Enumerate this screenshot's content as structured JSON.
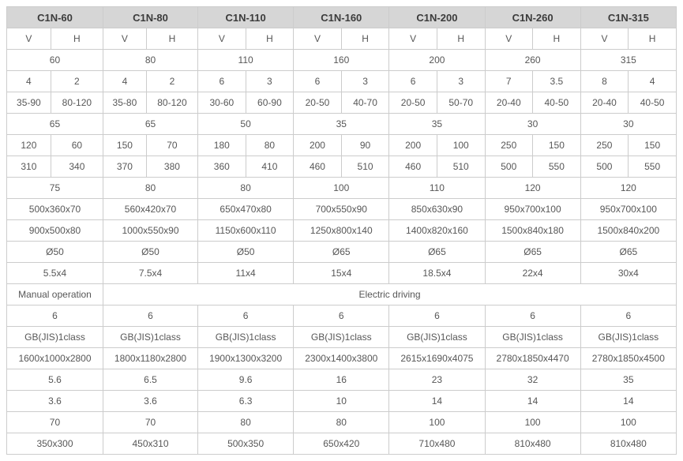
{
  "headers": [
    "C1N-60",
    "C1N-80",
    "C1N-110",
    "C1N-160",
    "C1N-200",
    "C1N-260",
    "C1N-315"
  ],
  "sub": {
    "v": "V",
    "h": "H"
  },
  "row_single_1": [
    "60",
    "80",
    "110",
    "160",
    "200",
    "260",
    "315"
  ],
  "row_vh_1": [
    [
      "4",
      "2"
    ],
    [
      "4",
      "2"
    ],
    [
      "6",
      "3"
    ],
    [
      "6",
      "3"
    ],
    [
      "6",
      "3"
    ],
    [
      "7",
      "3.5"
    ],
    [
      "8",
      "4"
    ]
  ],
  "row_vh_2": [
    [
      "35-90",
      "80-120"
    ],
    [
      "35-80",
      "80-120"
    ],
    [
      "30-60",
      "60-90"
    ],
    [
      "20-50",
      "40-70"
    ],
    [
      "20-50",
      "50-70"
    ],
    [
      "20-40",
      "40-50"
    ],
    [
      "20-40",
      "40-50"
    ]
  ],
  "row_single_2": [
    "65",
    "65",
    "50",
    "35",
    "35",
    "30",
    "30"
  ],
  "row_vh_3": [
    [
      "120",
      "60"
    ],
    [
      "150",
      "70"
    ],
    [
      "180",
      "80"
    ],
    [
      "200",
      "90"
    ],
    [
      "200",
      "100"
    ],
    [
      "250",
      "150"
    ],
    [
      "250",
      "150"
    ]
  ],
  "row_vh_4": [
    [
      "310",
      "340"
    ],
    [
      "370",
      "380"
    ],
    [
      "360",
      "410"
    ],
    [
      "460",
      "510"
    ],
    [
      "460",
      "510"
    ],
    [
      "500",
      "550"
    ],
    [
      "500",
      "550"
    ]
  ],
  "row_single_3": [
    "75",
    "80",
    "80",
    "100",
    "110",
    "120",
    "120"
  ],
  "row_single_4": [
    "500x360x70",
    "560x420x70",
    "650x470x80",
    "700x550x90",
    "850x630x90",
    "950x700x100",
    "950x700x100"
  ],
  "row_single_5": [
    "900x500x80",
    "1000x550x90",
    "1150x600x110",
    "1250x800x140",
    "1400x820x160",
    "1500x840x180",
    "1500x840x200"
  ],
  "row_single_6": [
    "Ø50",
    "Ø50",
    "Ø50",
    "Ø65",
    "Ø65",
    "Ø65",
    "Ø65"
  ],
  "row_single_7": [
    "5.5x4",
    "7.5x4",
    "11x4",
    "15x4",
    "18.5x4",
    "22x4",
    "30x4"
  ],
  "row_operation": {
    "col1": "Manual operation",
    "rest": "Electric driving"
  },
  "row_single_8": [
    "6",
    "6",
    "6",
    "6",
    "6",
    "6",
    "6"
  ],
  "row_single_9": [
    "GB(JIS)1class",
    "GB(JIS)1class",
    "GB(JIS)1class",
    "GB(JIS)1class",
    "GB(JIS)1class",
    "GB(JIS)1class",
    "GB(JIS)1class"
  ],
  "row_single_10": [
    "1600x1000x2800",
    "1800x1180x2800",
    "1900x1300x3200",
    "2300x1400x3800",
    "2615x1690x4075",
    "2780x1850x4470",
    "2780x1850x4500"
  ],
  "row_single_11": [
    "5.6",
    "6.5",
    "9.6",
    "16",
    "23",
    "32",
    "35"
  ],
  "row_single_12": [
    "3.6",
    "3.6",
    "6.3",
    "10",
    "14",
    "14",
    "14"
  ],
  "row_single_13": [
    "70",
    "70",
    "80",
    "80",
    "100",
    "100",
    "100"
  ],
  "row_single_14": [
    "350x300",
    "450x310",
    "500x350",
    "650x420",
    "710x480",
    "810x480",
    "810x480"
  ]
}
